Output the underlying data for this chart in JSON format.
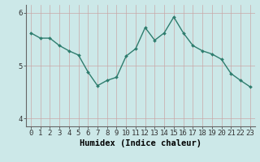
{
  "x": [
    0,
    1,
    2,
    3,
    4,
    5,
    6,
    7,
    8,
    9,
    10,
    11,
    12,
    13,
    14,
    15,
    16,
    17,
    18,
    19,
    20,
    21,
    22,
    23
  ],
  "y": [
    5.62,
    5.52,
    5.52,
    5.38,
    5.28,
    5.2,
    4.88,
    4.62,
    4.72,
    4.78,
    5.18,
    5.32,
    5.72,
    5.48,
    5.62,
    5.92,
    5.62,
    5.38,
    5.28,
    5.22,
    5.12,
    4.85,
    4.72,
    4.6
  ],
  "line_color": "#2e7d6e",
  "marker": "D",
  "marker_size": 2.0,
  "line_width": 1.0,
  "bg_color": "#cce8e8",
  "grid_color_v": "#c8a8a8",
  "grid_color_h": "#c8a8a8",
  "xlabel": "Humidex (Indice chaleur)",
  "xlabel_fontsize": 7.5,
  "xlim": [
    -0.5,
    23.5
  ],
  "ylim": [
    3.85,
    6.15
  ],
  "yticks": [
    4,
    5,
    6
  ],
  "xticks": [
    0,
    1,
    2,
    3,
    4,
    5,
    6,
    7,
    8,
    9,
    10,
    11,
    12,
    13,
    14,
    15,
    16,
    17,
    18,
    19,
    20,
    21,
    22,
    23
  ],
  "tick_fontsize": 6.5,
  "axis_color": "#666666"
}
